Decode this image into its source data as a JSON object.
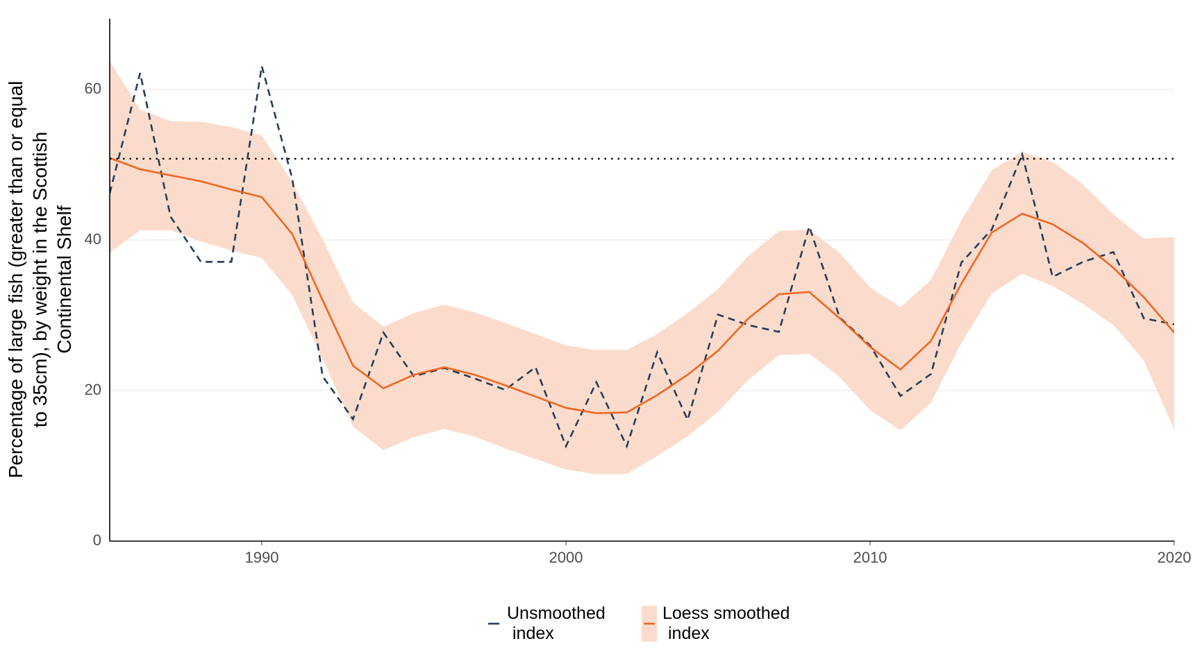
{
  "chart_data": {
    "type": "line",
    "ylabel_lines": [
      "Percentage of large fish (greater than or equal",
      "to 35cm), by weight in the Scottish",
      "Continental Shelf"
    ],
    "x": [
      1985,
      1986,
      1987,
      1988,
      1989,
      1990,
      1991,
      1992,
      1993,
      1994,
      1995,
      1996,
      1997,
      1998,
      1999,
      2000,
      2001,
      2002,
      2003,
      2004,
      2005,
      2006,
      2007,
      2008,
      2009,
      2010,
      2011,
      2012,
      2013,
      2014,
      2015,
      2016,
      2017,
      2018,
      2019,
      2020
    ],
    "series": [
      {
        "name": "Unsmoothed index",
        "color": "#233d5a",
        "dashed": true,
        "values": [
          46.2,
          62.2,
          43.1,
          37.1,
          37.1,
          63.1,
          48.2,
          21.9,
          16.2,
          27.7,
          21.9,
          23.0,
          21.6,
          20.1,
          23.1,
          12.6,
          21.1,
          12.6,
          25.1,
          16.1,
          30.1,
          28.7,
          27.8,
          41.8,
          29.7,
          26.0,
          19.3,
          22.2,
          37.0,
          41.4,
          51.4,
          35.1,
          37.1,
          38.4,
          29.6,
          28.8
        ]
      },
      {
        "name": "Loess smoothed index",
        "color": "#f26522",
        "dashed": false,
        "band_color": "#fbdccc",
        "values": [
          50.9,
          49.4,
          48.6,
          47.8,
          46.7,
          45.7,
          40.8,
          32.0,
          23.3,
          20.3,
          22.1,
          23.1,
          22.1,
          20.7,
          19.2,
          17.7,
          17.0,
          17.1,
          19.4,
          22.1,
          25.3,
          29.6,
          32.8,
          33.1,
          29.6,
          25.8,
          22.8,
          26.6,
          34.2,
          41.0,
          43.5,
          42.1,
          39.6,
          36.3,
          32.4,
          27.7
        ],
        "upper": [
          63.8,
          57.3,
          55.8,
          55.7,
          55.0,
          53.9,
          47.7,
          40.1,
          31.7,
          28.5,
          30.3,
          31.4,
          30.4,
          29.0,
          27.5,
          26.0,
          25.4,
          25.4,
          27.5,
          30.3,
          33.5,
          37.9,
          41.2,
          41.4,
          38.3,
          33.7,
          31.1,
          34.7,
          42.6,
          49.3,
          51.7,
          50.4,
          47.4,
          43.4,
          40.2,
          40.4
        ],
        "lower": [
          38.3,
          41.3,
          41.3,
          39.8,
          38.6,
          37.6,
          32.7,
          24.2,
          15.2,
          12.1,
          13.8,
          14.9,
          13.9,
          12.3,
          10.9,
          9.5,
          8.9,
          8.9,
          11.3,
          13.9,
          17.2,
          21.4,
          24.7,
          24.9,
          21.8,
          17.4,
          14.7,
          18.4,
          26.3,
          32.9,
          35.5,
          33.9,
          31.5,
          28.7,
          24.0,
          14.8
        ]
      }
    ],
    "reference_line": 50.8,
    "xlim": [
      1985,
      2020
    ],
    "xticks": [
      1990,
      2000,
      2010,
      2020
    ],
    "ylim": [
      0,
      69.4
    ],
    "yticks": [
      0,
      20,
      40,
      60
    ],
    "grid": true,
    "legend": "bottom"
  }
}
